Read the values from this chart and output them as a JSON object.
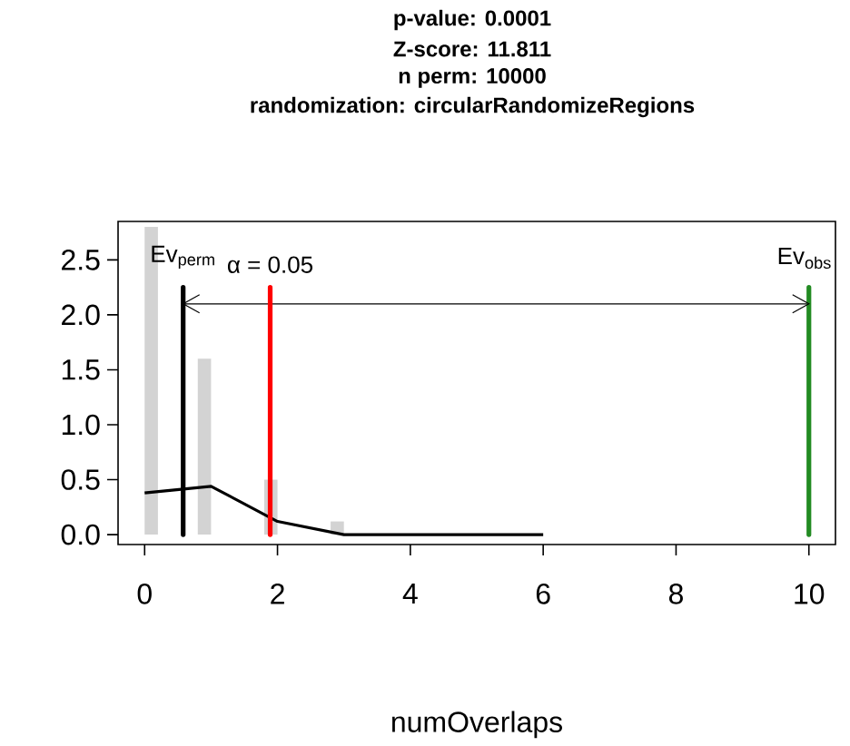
{
  "chart_data": {
    "type": "histogram",
    "title": "p-value:  0.0001",
    "subtitle": "Z-score:  11.811",
    "annotations": [
      "n perm:  10000",
      "randomization:  circularRandomizeRegions",
      "α = 0.05"
    ],
    "xlabel": "numOverlaps",
    "series": [
      {
        "color": "#d3d3d3",
        "bins": [
          0,
          0.2,
          0.4,
          0.6,
          0.8,
          1.0,
          1.2,
          1.4,
          1.6,
          1.8,
          2.0,
          2.2,
          2.4,
          2.6,
          2.8,
          3.0
        ],
        "values": [
          2.8,
          0,
          0,
          0,
          1.6,
          0,
          0,
          0,
          0,
          0.5,
          0,
          0,
          0,
          0,
          0.12
        ]
      },
      {
        "type": "line",
        "color": "#000000",
        "x": [
          0,
          1,
          2,
          3,
          4,
          5,
          6
        ],
        "values": [
          0.38,
          0.44,
          0.12,
          0.0,
          0.0,
          0.0,
          0.0
        ]
      },
      {
        "type": "line",
        "color": "#000000",
        "x": [
          0.58,
          10
        ],
        "values": [
          2.1,
          2.1
        ]
      }
    ],
    "ref_lines": [
      {
        "axis": "x",
        "value": 0.58,
        "label": "Ev$_{perm}$",
        "color": "#000000"
      },
      {
        "axis": "x",
        "value": 1.89,
        "color": "#ff0000"
      },
      {
        "axis": "x",
        "value": 10,
        "label": "Ev$_{obs}$",
        "color": "#228b22"
      }
    ],
    "xlim": [
      -0.4,
      10.4
    ],
    "ylim": [
      -0.09,
      2.85
    ],
    "xticks": [
      0,
      2,
      4,
      6,
      8,
      10
    ],
    "yticks": [
      {
        "value": 0,
        "label": "0.0"
      },
      {
        "value": 0.5,
        "label": "0.5"
      },
      {
        "value": 1,
        "label": "1.0"
      },
      {
        "value": 1.5,
        "label": "1.5"
      },
      {
        "value": 2,
        "label": "2.0"
      },
      {
        "value": 2.5,
        "label": "2.5"
      }
    ]
  }
}
